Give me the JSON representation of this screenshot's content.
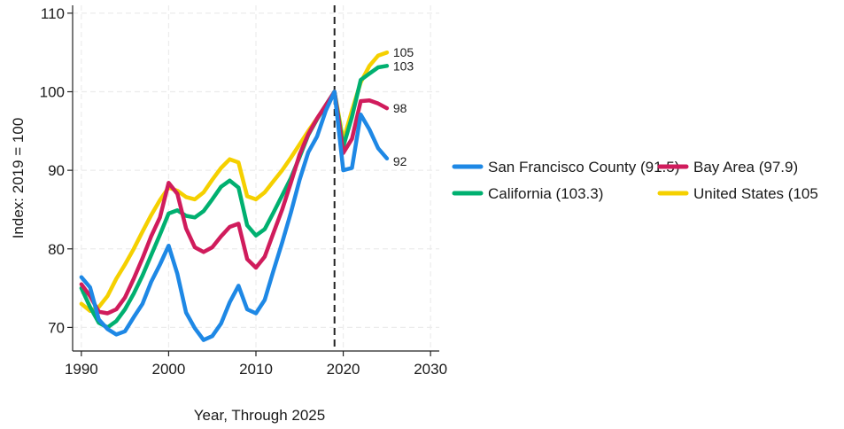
{
  "chart_data": {
    "type": "line",
    "xlabel": "Year, Through 2025",
    "ylabel": "Index: 2019 = 100",
    "xlim": [
      1989,
      2031
    ],
    "ylim": [
      67,
      111
    ],
    "xticks": [
      1990,
      2000,
      2010,
      2020,
      2030
    ],
    "yticks": [
      70,
      80,
      90,
      100,
      110
    ],
    "grid": true,
    "vertical_reference_line": 2019,
    "legend_position": "right",
    "x": [
      1990,
      1991,
      1992,
      1993,
      1994,
      1995,
      1996,
      1997,
      1998,
      1999,
      2000,
      2001,
      2002,
      2003,
      2004,
      2005,
      2006,
      2007,
      2008,
      2009,
      2010,
      2011,
      2012,
      2013,
      2014,
      2015,
      2016,
      2017,
      2018,
      2019,
      2020,
      2021,
      2022,
      2023,
      2024,
      2025
    ],
    "series": [
      {
        "name": "United States (105",
        "color": "#f5d000",
        "end_label": "105",
        "values": [
          73.0,
          72.1,
          72.6,
          74.0,
          76.2,
          78.0,
          80.0,
          82.2,
          84.3,
          86.2,
          87.8,
          87.4,
          86.6,
          86.3,
          87.2,
          88.8,
          90.3,
          91.4,
          91.0,
          86.7,
          86.3,
          87.2,
          88.6,
          90.0,
          91.6,
          93.3,
          95.0,
          96.6,
          98.2,
          100.0,
          93.8,
          97.6,
          101.2,
          103.3,
          104.6,
          105.0
        ]
      },
      {
        "name": "California (103.3)",
        "color": "#00b070",
        "end_label": "103",
        "values": [
          75.0,
          72.6,
          70.6,
          70.0,
          70.8,
          72.3,
          74.3,
          76.6,
          79.2,
          81.8,
          84.5,
          84.9,
          84.2,
          84.0,
          84.8,
          86.3,
          87.9,
          88.7,
          87.8,
          83.0,
          81.7,
          82.5,
          84.6,
          86.8,
          89.0,
          91.7,
          94.5,
          96.5,
          98.3,
          100.0,
          93.0,
          96.8,
          101.5,
          102.3,
          103.1,
          103.3
        ]
      },
      {
        "name": "Bay Area (97.9)",
        "color": "#d01c5c",
        "end_label": "98",
        "values": [
          75.5,
          74.0,
          72.0,
          71.8,
          72.3,
          73.8,
          76.2,
          78.8,
          81.6,
          84.0,
          88.4,
          87.0,
          82.6,
          80.2,
          79.6,
          80.2,
          81.6,
          82.8,
          83.2,
          78.7,
          77.6,
          79.0,
          82.0,
          85.0,
          88.4,
          92.0,
          94.6,
          96.6,
          98.3,
          100.0,
          92.2,
          94.0,
          98.8,
          98.9,
          98.5,
          97.9
        ]
      },
      {
        "name": "San Francisco County (91.5)",
        "color": "#1e88e5",
        "end_label": "92",
        "values": [
          76.4,
          75.1,
          71.0,
          69.8,
          69.1,
          69.5,
          71.3,
          73.0,
          75.8,
          78.0,
          80.4,
          76.8,
          71.9,
          69.9,
          68.4,
          68.9,
          70.5,
          73.2,
          75.3,
          72.3,
          71.8,
          73.5,
          77.2,
          80.8,
          84.6,
          88.8,
          92.3,
          94.3,
          97.6,
          100.0,
          90.0,
          90.3,
          97.1,
          95.2,
          92.8,
          91.5
        ]
      }
    ],
    "legend": [
      {
        "label": "San Francisco County (91.5)",
        "color": "#1e88e5"
      },
      {
        "label": "Bay Area (97.9)",
        "color": "#d01c5c"
      },
      {
        "label": "California (103.3)",
        "color": "#00b070"
      },
      {
        "label": "United States (105",
        "color": "#f5d000"
      }
    ]
  }
}
